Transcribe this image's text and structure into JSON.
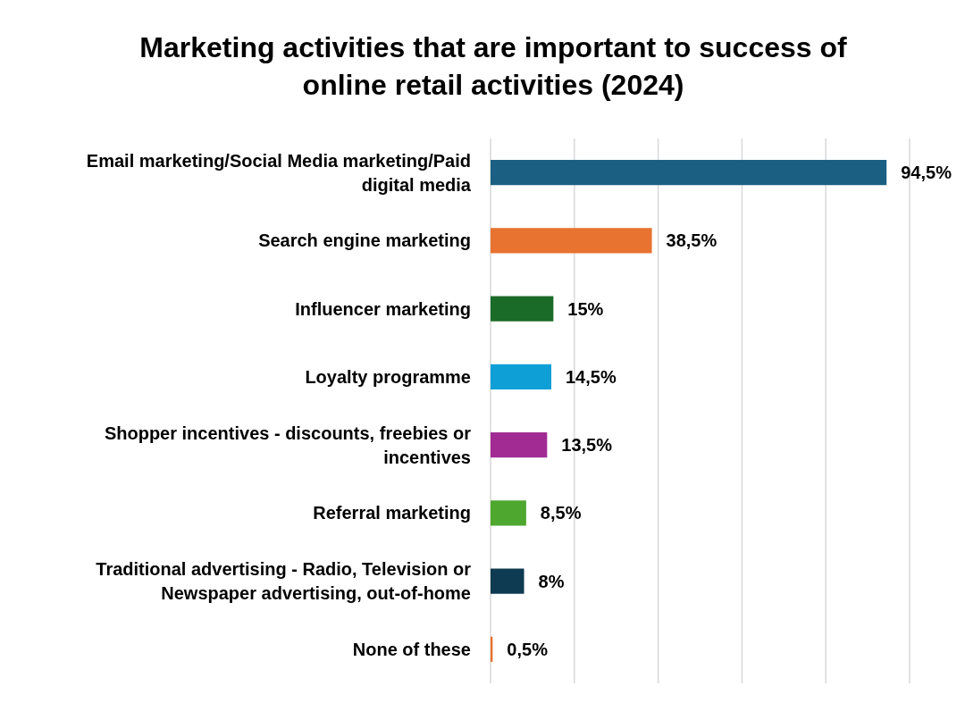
{
  "chart_data": {
    "type": "bar",
    "orientation": "horizontal",
    "title": "Marketing activities that are important to success of online retail activities (2024)",
    "categories": [
      "Email marketing/Social Media marketing/Paid digital media",
      "Search engine marketing",
      "Influencer marketing",
      "Loyalty programme",
      "Shopper incentives - discounts, freebies or incentives",
      "Referral marketing",
      "Traditional advertising - Radio, Television or Newspaper advertising, out-of-home",
      "None of these"
    ],
    "values": [
      94.5,
      38.5,
      15,
      14.5,
      13.5,
      8.5,
      8,
      0.5
    ],
    "value_labels": [
      "94,5%",
      "38,5%",
      "15%",
      "14,5%",
      "13,5%",
      "8,5%",
      "8%",
      "0,5%"
    ],
    "colors": [
      "#1b5f83",
      "#e8722f",
      "#1a6b27",
      "#0f9fd7",
      "#a12b93",
      "#4ea72e",
      "#0e3a52",
      "#e8722f"
    ],
    "xlim": [
      0,
      100
    ],
    "xticks": [
      {
        "value": 0,
        "label": null
      },
      {
        "value": 20,
        "label": null
      },
      {
        "value": 40,
        "label": null
      },
      {
        "value": 60,
        "label": null
      },
      {
        "value": 80,
        "label": null
      },
      {
        "value": 100,
        "label": null
      }
    ],
    "tick_labels": "y",
    "grid": "x"
  }
}
